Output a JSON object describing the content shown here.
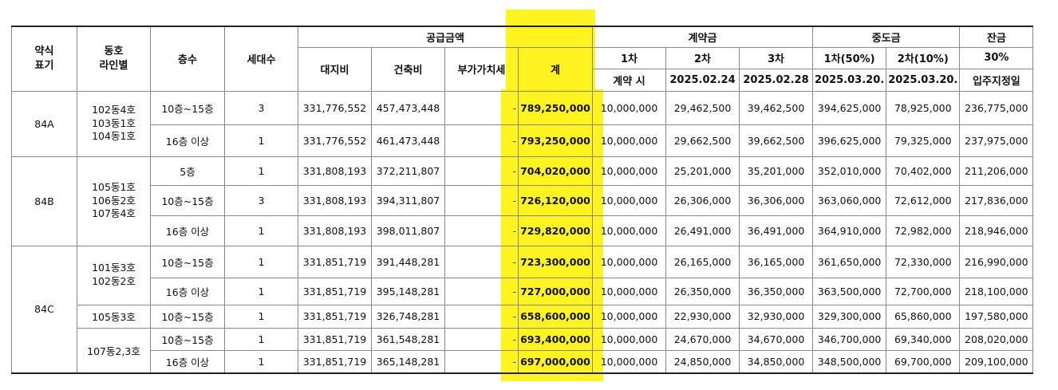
{
  "headers": {
    "type": "약식\n표기",
    "line": "동호\n라인별",
    "floor": "층수",
    "units": "세대수",
    "supply": "공급금액",
    "land": "대지비",
    "build": "건축비",
    "vat": "부가가치세",
    "total": "계",
    "contract": "계약금",
    "c1": "1차",
    "c2": "2차",
    "c3": "3차",
    "c1_sub": "계약 시",
    "c2_sub": "2025.02.24",
    "c3_sub": "2025.02.28",
    "mid": "중도금",
    "m1": "1차(50%)",
    "m2": "2차(10%)",
    "m1_sub": "2025.03.20.",
    "m2_sub": "2025.03.20.",
    "bal": "잔금",
    "bal_pct": "30%",
    "bal_sub": "입주지정일"
  },
  "rows": [
    {
      "type": "84A",
      "line": "102동4호\n103동1호\n104동1호",
      "floor": "10층~15층",
      "units": "3",
      "land": "331,776,552",
      "build": "457,473,448",
      "vat": "-",
      "total": "789,250,000",
      "c1": "10,000,000",
      "c2": "29,462,500",
      "c3": "39,462,500",
      "m1": "394,625,000",
      "m2": "78,925,000",
      "bal": "236,775,000"
    },
    {
      "floor": "16층 이상",
      "units": "1",
      "land": "331,776,552",
      "build": "461,473,448",
      "vat": "-",
      "total": "793,250,000",
      "c1": "10,000,000",
      "c2": "29,662,500",
      "c3": "39,662,500",
      "m1": "396,625,000",
      "m2": "79,325,000",
      "bal": "237,975,000"
    },
    {
      "type": "84B",
      "line": "105동1호\n106동2호\n107동4호",
      "floor": "5층",
      "units": "1",
      "land": "331,808,193",
      "build": "372,211,807",
      "vat": "-",
      "total": "704,020,000",
      "c1": "10,000,000",
      "c2": "25,201,000",
      "c3": "35,201,000",
      "m1": "352,010,000",
      "m2": "70,402,000",
      "bal": "211,206,000"
    },
    {
      "floor": "10층~15층",
      "units": "3",
      "land": "331,808,193",
      "build": "394,311,807",
      "vat": "-",
      "total": "726,120,000",
      "c1": "10,000,000",
      "c2": "26,306,000",
      "c3": "36,306,000",
      "m1": "363,060,000",
      "m2": "72,612,000",
      "bal": "217,836,000"
    },
    {
      "floor": "16층 이상",
      "units": "1",
      "land": "331,808,193",
      "build": "398,011,807",
      "vat": "-",
      "total": "729,820,000",
      "c1": "10,000,000",
      "c2": "26,491,000",
      "c3": "36,491,000",
      "m1": "364,910,000",
      "m2": "72,982,000",
      "bal": "218,946,000"
    },
    {
      "type": "84C",
      "line": "101동3호\n102동2호",
      "floor": "10층~15층",
      "units": "1",
      "land": "331,851,719",
      "build": "391,448,281",
      "vat": "-",
      "total": "723,300,000",
      "c1": "10,000,000",
      "c2": "26,165,000",
      "c3": "36,165,000",
      "m1": "361,650,000",
      "m2": "72,330,000",
      "bal": "216,990,000"
    },
    {
      "floor": "16층 이상",
      "units": "1",
      "land": "331,851,719",
      "build": "395,148,281",
      "vat": "-",
      "total": "727,000,000",
      "c1": "10,000,000",
      "c2": "26,350,000",
      "c3": "36,350,000",
      "m1": "363,500,000",
      "m2": "72,700,000",
      "bal": "218,100,000"
    },
    {
      "line": "105동3호",
      "floor": "10층~15층",
      "units": "1",
      "land": "331,851,719",
      "build": "326,748,281",
      "vat": "-",
      "total": "658,600,000",
      "c1": "10,000,000",
      "c2": "22,930,000",
      "c3": "32,930,000",
      "m1": "329,300,000",
      "m2": "65,860,000",
      "bal": "197,580,000"
    },
    {
      "line": "107동2,3호",
      "floor": "10층~15층",
      "units": "1",
      "land": "331,851,719",
      "build": "361,548,281",
      "vat": "-",
      "total": "693,400,000",
      "c1": "10,000,000",
      "c2": "24,670,000",
      "c3": "34,670,000",
      "m1": "346,700,000",
      "m2": "69,340,000",
      "bal": "208,020,000"
    },
    {
      "floor": "16층 이상",
      "units": "1",
      "land": "331,851,719",
      "build": "365,148,281",
      "vat": "-",
      "total": "697,000,000",
      "c1": "10,000,000",
      "c2": "24,850,000",
      "c3": "34,850,000",
      "m1": "348,500,000",
      "m2": "69,700,000",
      "bal": "209,100,000"
    }
  ],
  "colors": {
    "highlight": "#fff200",
    "border": "#8a8a8a"
  }
}
